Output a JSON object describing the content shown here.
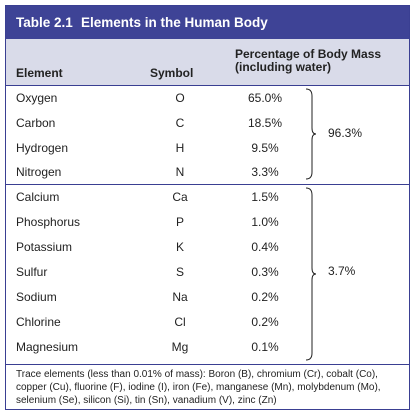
{
  "title": {
    "number": "Table 2.1",
    "text": "Elements in the Human Body"
  },
  "headers": {
    "element": "Element",
    "symbol": "Symbol",
    "percent_line1": "Percentage of Body Mass",
    "percent_line2": "(including water)"
  },
  "colors": {
    "title_bg": "#3e4396",
    "header_bg": "#d9dbe9",
    "border": "#3a3f92"
  },
  "rows": [
    {
      "element": "Oxygen",
      "symbol": "O",
      "percent": "65.0%"
    },
    {
      "element": "Carbon",
      "symbol": "C",
      "percent": "18.5%"
    },
    {
      "element": "Hydrogen",
      "symbol": "H",
      "percent": "9.5%"
    },
    {
      "element": "Nitrogen",
      "symbol": "N",
      "percent": "3.3%"
    },
    {
      "element": "Calcium",
      "symbol": "Ca",
      "percent": "1.5%"
    },
    {
      "element": "Phosphorus",
      "symbol": "P",
      "percent": "1.0%"
    },
    {
      "element": "Potassium",
      "symbol": "K",
      "percent": "0.4%"
    },
    {
      "element": "Sulfur",
      "symbol": "S",
      "percent": "0.3%"
    },
    {
      "element": "Sodium",
      "symbol": "Na",
      "percent": "0.2%"
    },
    {
      "element": "Chlorine",
      "symbol": "Cl",
      "percent": "0.2%"
    },
    {
      "element": "Magnesium",
      "symbol": "Mg",
      "percent": "0.1%"
    }
  ],
  "groups": [
    {
      "total": "96.3%"
    },
    {
      "total": "3.7%"
    }
  ],
  "footnote": "Trace elements (less than 0.01% of mass): Boron (B), chromium (Cr), cobalt (Co), copper (Cu), fluorine (F), iodine (I), iron (Fe), manganese (Mn), molybdenum (Mo), selenium (Se), silicon (Si), tin (Sn), vanadium (V), zinc (Zn)"
}
